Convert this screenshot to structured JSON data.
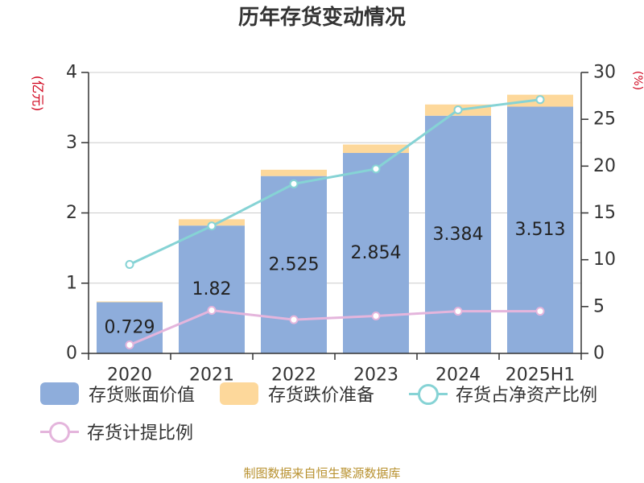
{
  "chart_data": {
    "type": "bar",
    "title": "历年存货变动情况",
    "categories": [
      "2020",
      "2021",
      "2022",
      "2023",
      "2024",
      "2025H1"
    ],
    "ylabel": "(亿元)",
    "y2label": "(%)",
    "ylim": [
      0,
      4
    ],
    "y2lim": [
      0,
      30
    ],
    "yticks": [
      0,
      1,
      2,
      3,
      4
    ],
    "y2ticks": [
      0,
      5,
      10,
      15,
      20,
      25,
      30
    ],
    "grid": true,
    "legend_position": "bottom",
    "series": [
      {
        "name": "存货账面价值",
        "type": "bar",
        "stack": "total",
        "axis": "left",
        "values": [
          0.729,
          1.82,
          2.525,
          2.854,
          3.384,
          3.513
        ],
        "color": "#8eaddb",
        "data_labels": true
      },
      {
        "name": "存货跌价准备",
        "type": "bar",
        "stack": "total",
        "axis": "left",
        "values": [
          0.01,
          0.09,
          0.09,
          0.12,
          0.16,
          0.17
        ],
        "color": "#fdd89b"
      },
      {
        "name": "存货占净资产比例",
        "type": "line",
        "axis": "right",
        "values": [
          9.5,
          13.6,
          18.1,
          19.7,
          26.0,
          27.1
        ],
        "color": "#86d3d5"
      },
      {
        "name": "存货计提比例",
        "type": "line",
        "axis": "right",
        "values": [
          0.9,
          4.6,
          3.6,
          4.0,
          4.5,
          4.5
        ],
        "color": "#e4b5dc"
      }
    ]
  },
  "source_note": "制图数据来自恒生聚源数据库",
  "colors": {
    "title": "#333333",
    "axis_label": "#d0021b",
    "gridline": "#cccccc",
    "axis_line": "#333333",
    "source_note": "#b8912f"
  }
}
